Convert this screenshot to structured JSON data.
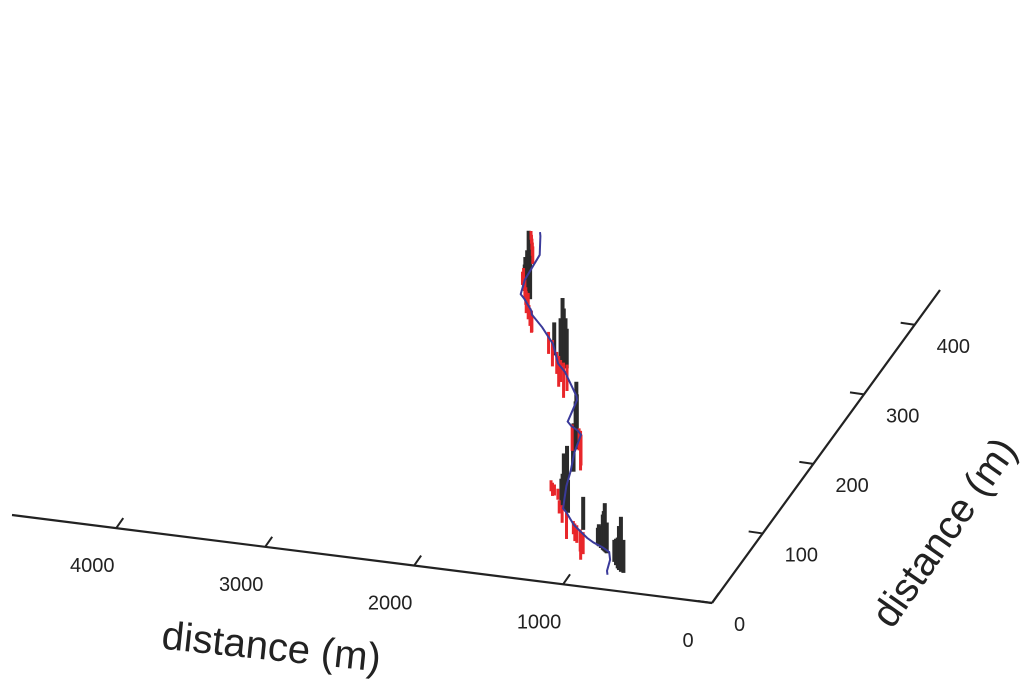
{
  "chart_data": {
    "type": "line",
    "x_axis": {
      "label": "distance (m)",
      "ticks": [
        4000,
        3000,
        2000,
        1000,
        0
      ]
    },
    "y_axis": {
      "label": "distance (m)",
      "ticks": [
        0,
        100,
        200,
        300,
        400
      ]
    },
    "series": [
      {
        "kind": "line",
        "color": "#3a3a9a",
        "points": [
          [
            2720,
            460
          ],
          [
            2700,
            455
          ],
          [
            2620,
            430
          ],
          [
            2600,
            395
          ],
          [
            2560,
            375
          ],
          [
            2520,
            370
          ],
          [
            2420,
            355
          ],
          [
            2400,
            350
          ],
          [
            2280,
            335
          ],
          [
            2140,
            315
          ],
          [
            2020,
            290
          ],
          [
            1940,
            280
          ],
          [
            1880,
            270
          ],
          [
            1760,
            250
          ],
          [
            1740,
            245
          ],
          [
            1720,
            230
          ],
          [
            1700,
            215
          ],
          [
            1660,
            210
          ],
          [
            1600,
            205
          ],
          [
            1560,
            200
          ],
          [
            1520,
            175
          ],
          [
            1460,
            150
          ],
          [
            1420,
            130
          ],
          [
            1380,
            115
          ],
          [
            1340,
            100
          ],
          [
            1300,
            95
          ],
          [
            1200,
            80
          ],
          [
            1060,
            65
          ],
          [
            1000,
            60
          ],
          [
            920,
            55
          ],
          [
            860,
            50
          ],
          [
            820,
            40
          ],
          [
            790,
            25
          ],
          [
            770,
            20
          ]
        ]
      }
    ],
    "black_bars": [
      [
        1945,
        285,
        18
      ],
      [
        1960,
        287,
        22
      ],
      [
        1975,
        288,
        26
      ],
      [
        1990,
        290,
        30
      ],
      [
        2010,
        292,
        20
      ],
      [
        2080,
        300,
        15
      ],
      [
        1520,
        180,
        25
      ],
      [
        1530,
        182,
        30
      ],
      [
        1545,
        185,
        20
      ],
      [
        1440,
        150,
        22
      ],
      [
        1450,
        152,
        18
      ],
      [
        1300,
        96,
        30
      ],
      [
        1320,
        98,
        20
      ],
      [
        1120,
        75,
        15
      ],
      [
        1290,
        95,
        15
      ],
      [
        1335,
        100,
        25
      ],
      [
        1350,
        102,
        15
      ],
      [
        1365,
        104,
        12
      ],
      [
        680,
        25,
        15
      ],
      [
        700,
        26,
        25
      ],
      [
        720,
        28,
        20
      ],
      [
        735,
        30,
        14
      ],
      [
        760,
        34,
        12
      ],
      [
        785,
        38,
        10
      ],
      [
        870,
        48,
        14
      ],
      [
        880,
        49,
        10
      ],
      [
        890,
        50,
        22
      ],
      [
        900,
        51,
        18
      ],
      [
        910,
        52,
        16
      ],
      [
        930,
        54,
        10
      ],
      [
        950,
        56,
        10
      ],
      [
        960,
        57,
        8
      ],
      [
        2480,
        370,
        25
      ],
      [
        2500,
        373,
        30
      ],
      [
        2520,
        376,
        20
      ],
      [
        2530,
        378,
        15
      ],
      [
        2550,
        380,
        12
      ],
      [
        2580,
        390,
        12
      ],
      [
        2600,
        400,
        10
      ]
    ],
    "red_bars": [
      [
        1960,
        290,
        12
      ],
      [
        1990,
        292,
        16
      ],
      [
        2020,
        295,
        10
      ],
      [
        2050,
        300,
        14
      ],
      [
        2080,
        305,
        10
      ],
      [
        2160,
        320,
        12
      ],
      [
        2220,
        330,
        10
      ],
      [
        1560,
        200,
        14
      ],
      [
        1580,
        205,
        18
      ],
      [
        1600,
        208,
        10
      ],
      [
        1660,
        212,
        12
      ],
      [
        1120,
        70,
        12
      ],
      [
        1110,
        72,
        10
      ],
      [
        1140,
        75,
        10
      ],
      [
        1180,
        80,
        8
      ],
      [
        1200,
        82,
        8
      ],
      [
        1220,
        85,
        6
      ],
      [
        1300,
        95,
        12
      ],
      [
        1360,
        104,
        8
      ],
      [
        1400,
        110,
        6
      ],
      [
        1460,
        125,
        5
      ],
      [
        1500,
        130,
        5
      ],
      [
        1520,
        132,
        6
      ],
      [
        1540,
        135,
        5
      ],
      [
        2400,
        350,
        8
      ],
      [
        2420,
        355,
        10
      ],
      [
        2440,
        358,
        8
      ],
      [
        2460,
        362,
        6
      ],
      [
        2520,
        378,
        12
      ],
      [
        2540,
        380,
        10
      ],
      [
        2560,
        385,
        8
      ],
      [
        2600,
        395,
        8
      ],
      [
        2620,
        398,
        6
      ],
      [
        2640,
        402,
        5
      ],
      [
        2650,
        405,
        5
      ],
      [
        2660,
        410,
        5
      ],
      [
        2700,
        440,
        8
      ],
      [
        2720,
        445,
        6
      ],
      [
        2740,
        450,
        5
      ],
      [
        2760,
        455,
        4
      ],
      [
        2780,
        460,
        4
      ]
    ]
  }
}
